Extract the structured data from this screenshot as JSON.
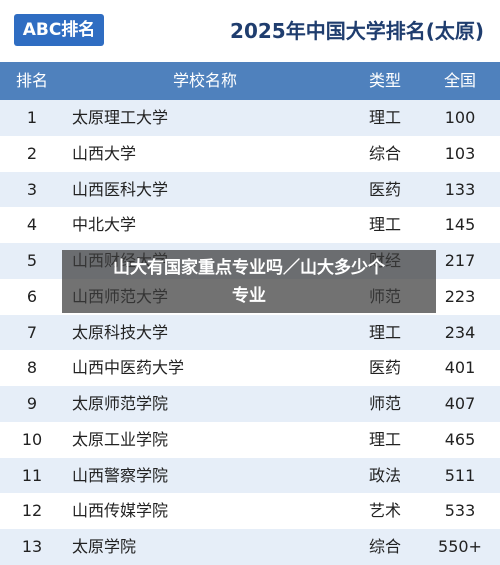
{
  "header": {
    "logo": "ABC排名",
    "title": "2025年中国大学排名(太原)"
  },
  "table": {
    "columns": [
      "排名",
      "学校名称",
      "类型",
      "全国"
    ],
    "rows": [
      [
        1,
        "太原理工大学",
        "理工",
        100
      ],
      [
        2,
        "山西大学",
        "综合",
        103
      ],
      [
        3,
        "山西医科大学",
        "医药",
        133
      ],
      [
        4,
        "中北大学",
        "理工",
        145
      ],
      [
        5,
        "山西财经大学",
        "财经",
        217
      ],
      [
        6,
        "山西师范大学",
        "师范",
        223
      ],
      [
        7,
        "太原科技大学",
        "理工",
        234
      ],
      [
        8,
        "山西中医药大学",
        "医药",
        401
      ],
      [
        9,
        "太原师范学院",
        "师范",
        407
      ],
      [
        10,
        "太原工业学院",
        "理工",
        465
      ],
      [
        11,
        "山西警察学院",
        "政法",
        511
      ],
      [
        12,
        "山西传媒学院",
        "艺术",
        533
      ],
      [
        13,
        "太原学院",
        "综合",
        "550+"
      ]
    ]
  },
  "overlay": {
    "lines": [
      "山大有国家重点专业吗／山大多少个",
      "专业"
    ]
  }
}
